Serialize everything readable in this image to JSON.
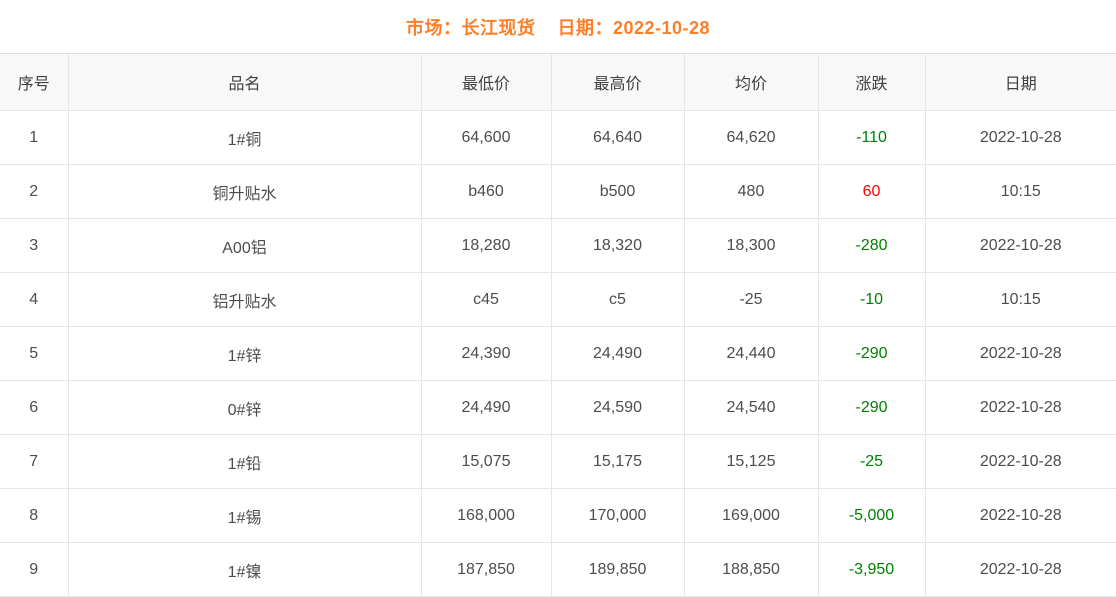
{
  "title": {
    "market_label": "市场：",
    "market": "长江现货",
    "date_label": "日期：",
    "date": "2022-10-28"
  },
  "colors": {
    "title_orange": "#ff7e28",
    "up_red": "#ff0000",
    "down_green": "#008000",
    "header_bg": "#f8f8f8",
    "border": "#e6e6e6",
    "text": "#4d4d4d"
  },
  "table": {
    "columns": [
      {
        "key": "index",
        "label": "序号"
      },
      {
        "key": "name",
        "label": "品名"
      },
      {
        "key": "low",
        "label": "最低价"
      },
      {
        "key": "high",
        "label": "最高价"
      },
      {
        "key": "avg",
        "label": "均价"
      },
      {
        "key": "change",
        "label": "涨跌"
      },
      {
        "key": "date",
        "label": "日期"
      }
    ],
    "rows": [
      {
        "index": "1",
        "name": "1#铜",
        "low": "64,600",
        "high": "64,640",
        "avg": "64,620",
        "change": "-110",
        "change_dir": "down",
        "date": "2022-10-28"
      },
      {
        "index": "2",
        "name": "铜升贴水",
        "low": "b460",
        "high": "b500",
        "avg": "480",
        "change": "60",
        "change_dir": "up",
        "date": "10:15"
      },
      {
        "index": "3",
        "name": "A00铝",
        "low": "18,280",
        "high": "18,320",
        "avg": "18,300",
        "change": "-280",
        "change_dir": "down",
        "date": "2022-10-28"
      },
      {
        "index": "4",
        "name": "铝升贴水",
        "low": "c45",
        "high": "c5",
        "avg": "-25",
        "change": "-10",
        "change_dir": "down",
        "date": "10:15"
      },
      {
        "index": "5",
        "name": "1#锌",
        "low": "24,390",
        "high": "24,490",
        "avg": "24,440",
        "change": "-290",
        "change_dir": "down",
        "date": "2022-10-28"
      },
      {
        "index": "6",
        "name": "0#锌",
        "low": "24,490",
        "high": "24,590",
        "avg": "24,540",
        "change": "-290",
        "change_dir": "down",
        "date": "2022-10-28"
      },
      {
        "index": "7",
        "name": "1#铅",
        "low": "15,075",
        "high": "15,175",
        "avg": "15,125",
        "change": "-25",
        "change_dir": "down",
        "date": "2022-10-28"
      },
      {
        "index": "8",
        "name": "1#锡",
        "low": "168,000",
        "high": "170,000",
        "avg": "169,000",
        "change": "-5,000",
        "change_dir": "down",
        "date": "2022-10-28"
      },
      {
        "index": "9",
        "name": "1#镍",
        "low": "187,850",
        "high": "189,850",
        "avg": "188,850",
        "change": "-3,950",
        "change_dir": "down",
        "date": "2022-10-28"
      }
    ]
  }
}
